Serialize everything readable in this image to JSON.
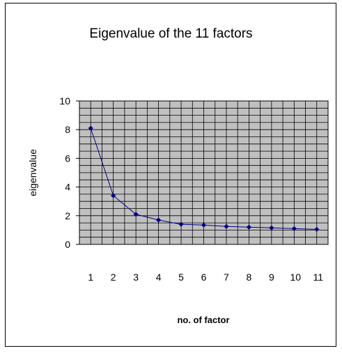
{
  "chart_data": {
    "type": "line",
    "title": "Eigenvalue of the 11 factors",
    "xlabel": "no. of factor",
    "ylabel": "eigenvalue",
    "categories": [
      "1",
      "2",
      "3",
      "4",
      "5",
      "6",
      "7",
      "8",
      "9",
      "10",
      "11"
    ],
    "series": [
      {
        "values": [
          8.1,
          3.4,
          2.1,
          1.7,
          1.4,
          1.35,
          1.25,
          1.2,
          1.15,
          1.1,
          1.05
        ]
      }
    ],
    "ylim": [
      0,
      10
    ],
    "yticks": [
      "0",
      "2",
      "4",
      "6",
      "8",
      "10"
    ],
    "grid": true,
    "legend": "none",
    "colors": {
      "plot_background": "#c0c0c0",
      "line": "#000080",
      "marker": "#000080",
      "grid": "#000000"
    }
  }
}
